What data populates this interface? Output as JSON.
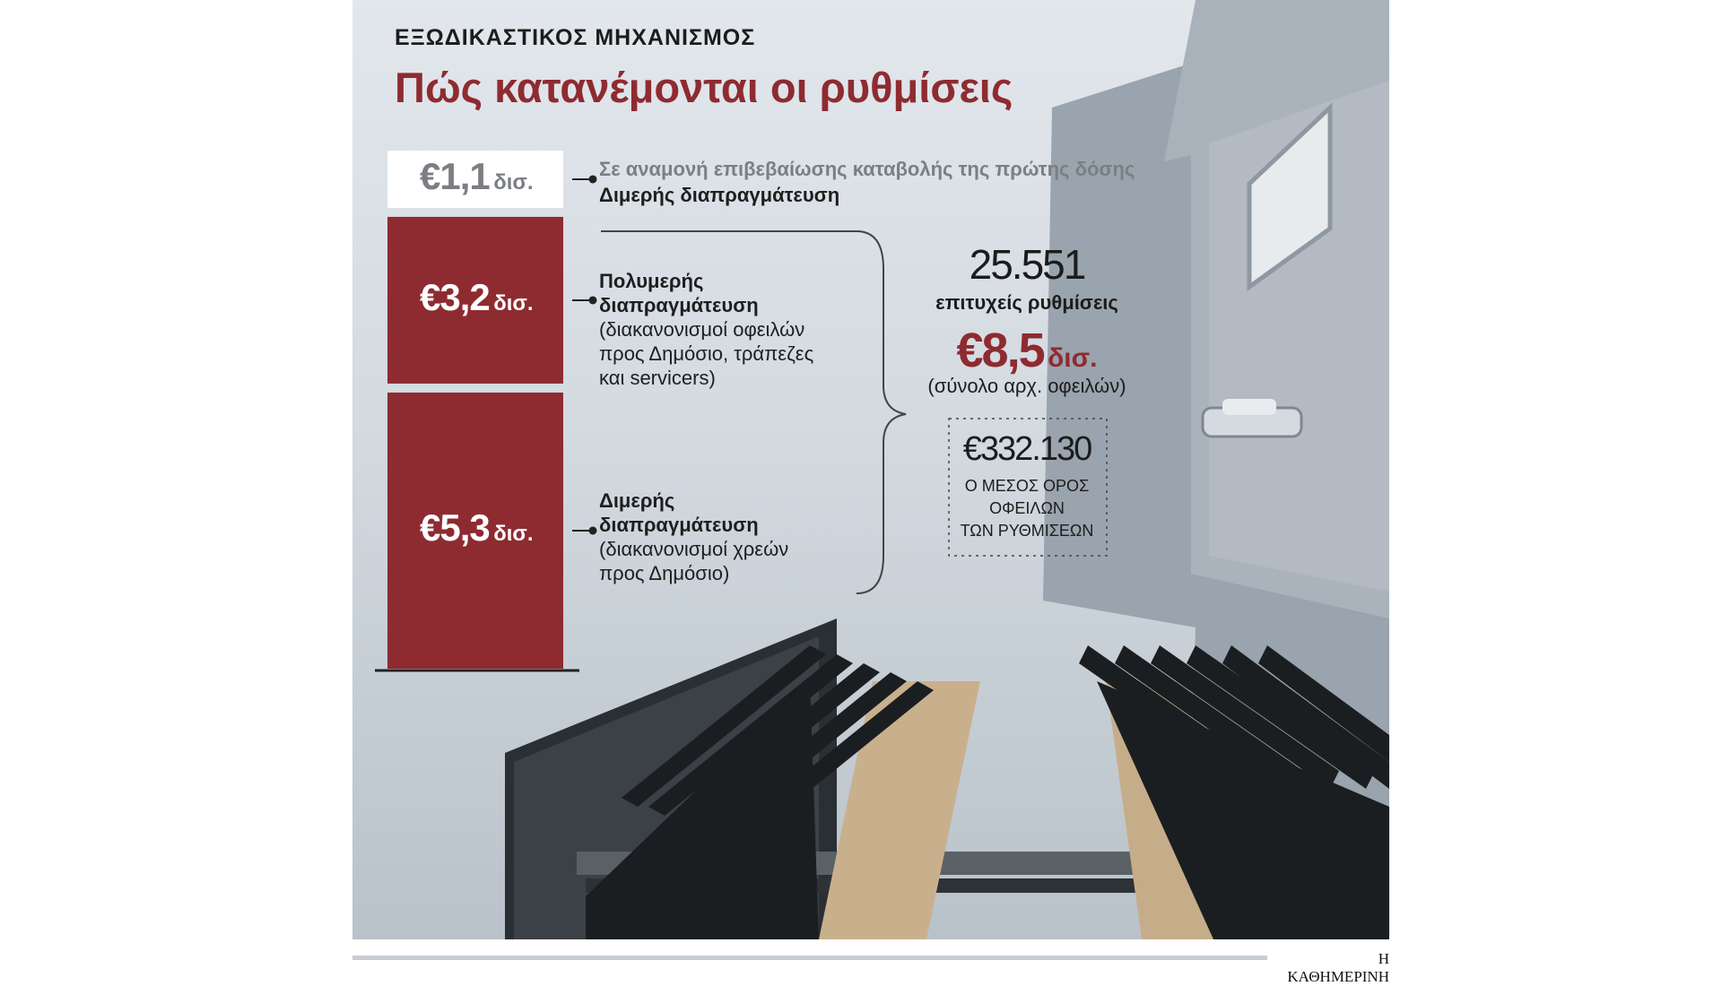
{
  "kicker": "ΕΞΩΔΙΚΑΣΤΙΚΟΣ ΜΗΧΑΝΙΣΜΟΣ",
  "title": "Πώς κατανέμονται οι ρυθμίσεις",
  "credit": "Η ΚΑΘΗΜΕΡΙΝΗ",
  "colors": {
    "accent": "#8e2b31",
    "pending": "#ffffff",
    "pending_text": "#7b7f83"
  },
  "chart_data": {
    "type": "bar",
    "stacked": true,
    "unit": "δισ.",
    "segments": [
      {
        "value": 5.3,
        "label_num": "€5,3",
        "label_unit": "δισ.",
        "desc_bold": "Διμερής διαπραγμάτευση",
        "desc_note": "(διακανονισμοί χρεών προς Δημόσιο)",
        "status": "completed"
      },
      {
        "value": 3.2,
        "label_num": "€3,2",
        "label_unit": "δισ.",
        "desc_bold": "Πολυμερής διαπραγμάτευση",
        "desc_note": "(διακανονισμοί οφειλών προς Δημόσιο, τράπεζες και servicers)",
        "status": "completed"
      },
      {
        "value": 1.1,
        "label_num": "€1,1",
        "label_unit": "δισ.",
        "desc_bold": "Σε αναμονή επιβεβαίωσης καταβολής της πρώτης δόσης",
        "desc_note": "Διμερής διαπραγμάτευση",
        "status": "pending"
      }
    ],
    "summary": {
      "count": "25.551",
      "count_label": "επιτυχείς ρυθμίσεις",
      "total_num": "€8,5",
      "total_unit": "δισ.",
      "total_label": "(σύνολο αρχ. οφειλών)",
      "average": "€332.130",
      "average_label": [
        "Ο ΜΕΣΟΣ ΟΡΟΣ",
        "ΟΦΕΙΛΩΝ",
        "ΤΩΝ ΡΥΘΜΙΣΕΩΝ"
      ]
    }
  }
}
